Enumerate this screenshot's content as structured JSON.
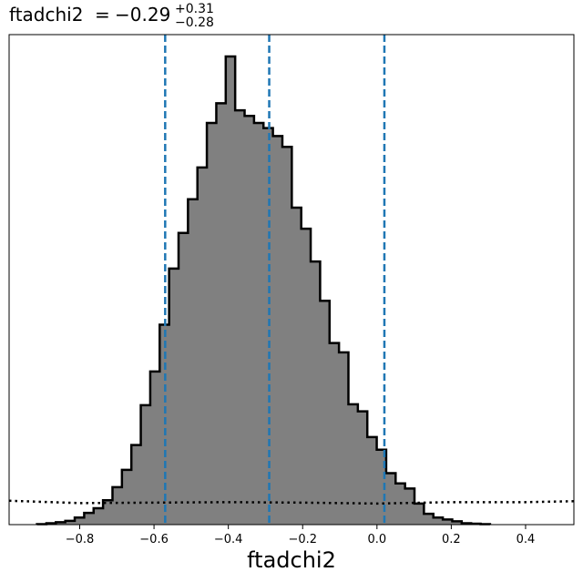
{
  "chart_data": {
    "type": "bar",
    "title": {
      "param": "ftadchi2",
      "equals": "=",
      "value": "−0.29",
      "upper": "+0.31",
      "lower": "−0.28"
    },
    "xlabel": "ftadchi2",
    "xlim": [
      -0.99,
      0.53
    ],
    "xticks": [
      -0.8,
      -0.6,
      -0.4,
      -0.2,
      0.0,
      0.2,
      0.4
    ],
    "xtick_labels": [
      "−0.8",
      "−0.6",
      "−0.4",
      "−0.2",
      "0.0",
      "0.2",
      "0.4"
    ],
    "ylim": [
      0,
      100
    ],
    "bins": {
      "edges_start": -0.915,
      "width": 0.0254,
      "heights": [
        0.1,
        0.3,
        0.5,
        0.8,
        1.5,
        2.5,
        3.5,
        5.2,
        8.0,
        11.7,
        17.0,
        25.5,
        32.7,
        42.7,
        54.7,
        62.3,
        69.5,
        76.3,
        85.8,
        90.0,
        100.0,
        88.5,
        87.3,
        85.8,
        84.7,
        83.0,
        80.7,
        67.7,
        63.2,
        56.2,
        47.8,
        38.8,
        36.8,
        25.7,
        24.2,
        18.7,
        16.0,
        11.0,
        8.8,
        7.7,
        4.5,
        2.3,
        1.5,
        1.1,
        0.7,
        0.3,
        0.2,
        0.1
      ],
      "fill": "#808080",
      "edge": "#000000"
    },
    "quantiles": {
      "values": [
        -0.57,
        -0.29,
        0.02
      ],
      "color": "#1f77b4",
      "style": "dashed"
    },
    "prior": {
      "x": [
        -0.99,
        -0.8,
        -0.6,
        -0.4,
        -0.2,
        0.0,
        0.2,
        0.4,
        0.53
      ],
      "y": [
        5.1,
        4.6,
        4.7,
        4.8,
        4.7,
        4.5,
        4.8,
        4.8,
        5.0
      ],
      "style": "dotted",
      "color": "#000000"
    }
  }
}
